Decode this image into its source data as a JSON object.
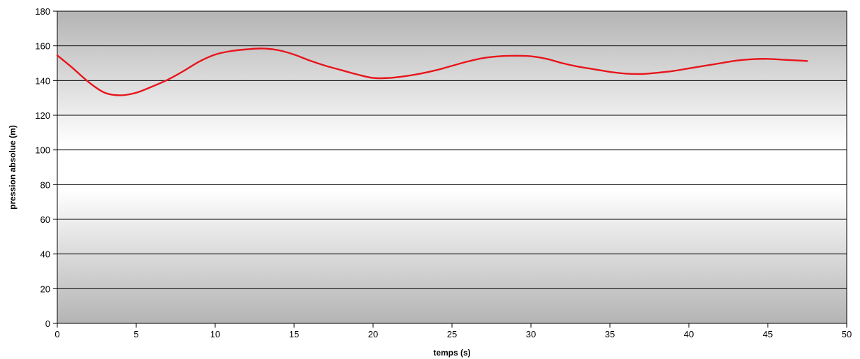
{
  "chart_data": {
    "type": "line",
    "title": "",
    "xlabel": "temps (s)",
    "ylabel": "pression absolue (m)",
    "xlim": [
      0,
      50
    ],
    "ylim": [
      0,
      180
    ],
    "xticks": [
      0,
      5,
      10,
      15,
      20,
      25,
      30,
      35,
      40,
      45,
      50
    ],
    "yticks": [
      0,
      20,
      40,
      60,
      80,
      100,
      120,
      140,
      160,
      180
    ],
    "grid": true,
    "legend": "none",
    "series": [
      {
        "color": "#e8141b",
        "x": [
          0,
          1,
          2,
          3,
          4,
          5,
          6,
          7,
          8,
          9,
          10,
          11,
          12,
          13,
          14,
          15,
          16,
          17,
          18,
          19,
          20,
          21,
          22,
          23,
          24,
          25,
          26,
          27,
          28,
          29,
          30,
          31,
          32,
          33,
          34,
          35,
          36,
          37,
          38,
          39,
          40,
          41,
          42,
          43,
          44,
          45,
          46,
          47.5
        ],
        "y": [
          154.5,
          147,
          139,
          133,
          131.5,
          133,
          136.5,
          140.5,
          145.5,
          151,
          155,
          157,
          158,
          158.5,
          157.5,
          155,
          151.5,
          148.5,
          146,
          143.5,
          141.5,
          141.5,
          142.5,
          144,
          146,
          148.5,
          151,
          153,
          154,
          154.3,
          154,
          152.5,
          150,
          148,
          146.5,
          145,
          144,
          143.8,
          144.5,
          145.5,
          147,
          148.5,
          150,
          151.5,
          152.3,
          152.5,
          152,
          151.3
        ]
      }
    ]
  }
}
